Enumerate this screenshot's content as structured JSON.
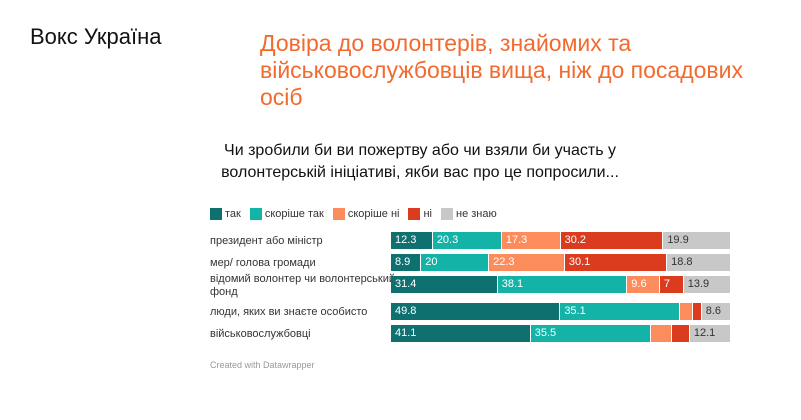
{
  "brand": "Вокс Україна",
  "title": "Довіра до волонтерів, знайомих та військовослужбовців вища, ніж до посадових осіб",
  "footer": "Created with Datawrapper",
  "chart_data": {
    "type": "bar",
    "stacked": true,
    "orientation": "horizontal",
    "title": "Чи зробили би ви пожертву або чи взяли би участь у волонтерській ініціативі, якби вас про це попросили...",
    "legend_placement": "top-left",
    "categories": [
      "президент або міністр",
      "мер/ голова громади",
      "відомий волонтер чи волонтерський фонд",
      "люди, яких ви знаєте особисто",
      "військовослужбовці"
    ],
    "series": [
      {
        "name": "так",
        "color": "#0f7070",
        "values": [
          12.3,
          8.9,
          31.4,
          49.8,
          41.1
        ],
        "show_labels": [
          true,
          true,
          true,
          true,
          true
        ]
      },
      {
        "name": "скоріше так",
        "color": "#13b3a8",
        "values": [
          20.3,
          20,
          38.1,
          35.1,
          35.5
        ],
        "show_labels": [
          true,
          true,
          true,
          true,
          true
        ]
      },
      {
        "name": "скоріше ні",
        "color": "#fd8c5c",
        "values": [
          17.3,
          22.3,
          9.6,
          3.8,
          6.0
        ],
        "show_labels": [
          true,
          true,
          true,
          false,
          false
        ]
      },
      {
        "name": "ні",
        "color": "#dc3c1e",
        "values": [
          30.2,
          30.1,
          7,
          2.7,
          5.3
        ],
        "show_labels": [
          true,
          true,
          true,
          false,
          false
        ]
      },
      {
        "name": "не знаю",
        "color": "#c8c8c8",
        "values": [
          19.9,
          18.8,
          13.9,
          8.6,
          12.1
        ],
        "show_labels": [
          true,
          true,
          true,
          true,
          true
        ]
      }
    ]
  }
}
